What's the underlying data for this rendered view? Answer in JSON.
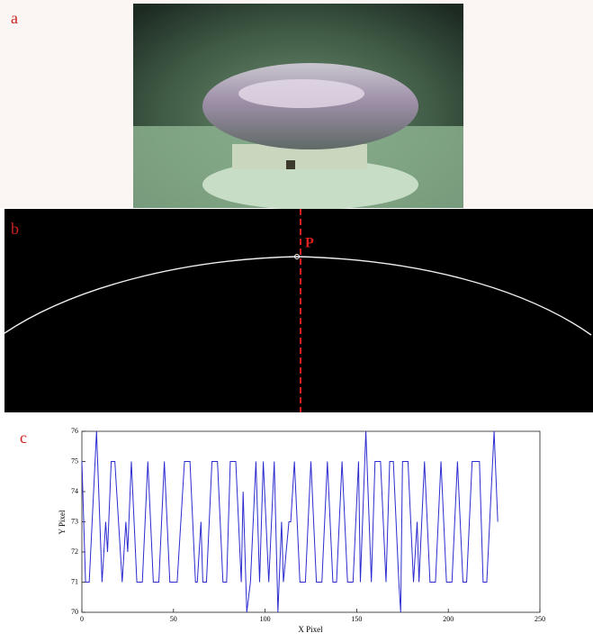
{
  "panel_labels": [
    "a",
    "b",
    "c"
  ],
  "annotation": "P",
  "chart_data": {
    "type": "line",
    "x_label": "X Pixel",
    "y_label": "Y Pixel",
    "xlim": [
      0,
      250
    ],
    "xticks": [
      0,
      50,
      100,
      150,
      200,
      250
    ],
    "ylim": [
      70,
      76
    ],
    "yticks": [
      70,
      71,
      72,
      73,
      74,
      75,
      76
    ],
    "series": [
      {
        "color": "#2b2bd0",
        "x": [
          0,
          2,
          4,
          8,
          11,
          13,
          14,
          16,
          18,
          22,
          24,
          25,
          27,
          30,
          33,
          36,
          39,
          42,
          45,
          48,
          52,
          56,
          59,
          62,
          63,
          65,
          66,
          68,
          71,
          74,
          77,
          79,
          81,
          84,
          87,
          88,
          90,
          92,
          95,
          97,
          99,
          102,
          105,
          107,
          109,
          110,
          113,
          114,
          116,
          119,
          122,
          125,
          128,
          131,
          134,
          137,
          139,
          142,
          145,
          148,
          151,
          152,
          155,
          158,
          160,
          163,
          166,
          168,
          170,
          173,
          174,
          175,
          178,
          181,
          183,
          184,
          187,
          190,
          193,
          196,
          199,
          202,
          205,
          208,
          210,
          213,
          217,
          219,
          221,
          225,
          227
        ],
        "values": [
          75,
          71,
          71,
          76,
          71,
          73,
          72,
          75,
          75,
          71,
          73,
          72,
          75,
          71,
          71,
          75,
          71,
          71,
          75,
          71,
          71,
          75,
          75,
          71,
          71,
          73,
          71,
          71,
          75,
          75,
          71,
          71,
          75,
          75,
          71,
          74,
          70,
          71,
          75,
          71,
          75,
          71,
          75,
          70,
          73,
          71,
          73,
          73,
          75,
          71,
          71,
          75,
          71,
          71,
          75,
          71,
          71,
          75,
          71,
          71,
          75,
          71,
          76,
          71,
          75,
          75,
          71,
          75,
          75,
          71,
          70,
          75,
          75,
          71,
          73,
          71,
          75,
          71,
          71,
          75,
          71,
          71,
          75,
          71,
          71,
          75,
          75,
          71,
          71,
          76,
          73
        ]
      }
    ]
  }
}
